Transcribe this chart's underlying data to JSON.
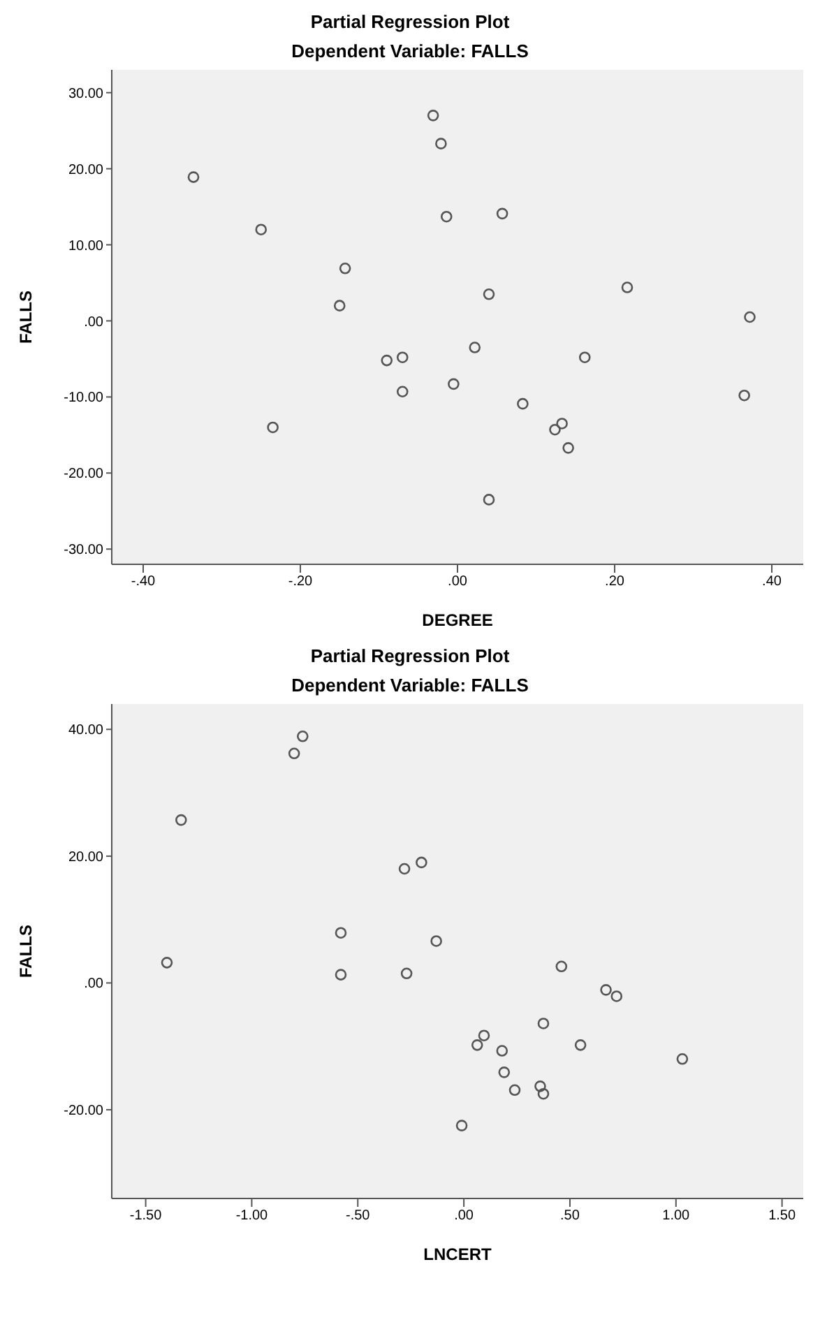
{
  "chart_data": [
    {
      "type": "scatter",
      "title": "Partial Regression Plot",
      "subtitle": "Dependent Variable: FALLS",
      "xlabel": "DEGREE",
      "ylabel": "FALLS",
      "marker": "circle",
      "grid": false,
      "xlim": [
        -0.44,
        0.44
      ],
      "ylim": [
        -32,
        33
      ],
      "xticks": [
        {
          "value": -0.4,
          "label": "-.40"
        },
        {
          "value": -0.2,
          "label": "-.20"
        },
        {
          "value": 0,
          "label": ".00"
        },
        {
          "value": 0.2,
          "label": ".20"
        },
        {
          "value": 0.4,
          "label": ".40"
        }
      ],
      "yticks": [
        {
          "value": -30,
          "label": "-30.00"
        },
        {
          "value": -20,
          "label": "-20.00"
        },
        {
          "value": -10,
          "label": "-10.00"
        },
        {
          "value": 0,
          "label": ".00"
        },
        {
          "value": 10,
          "label": "10.00"
        },
        {
          "value": 20,
          "label": "20.00"
        },
        {
          "value": 30,
          "label": "30.00"
        }
      ],
      "series": [
        {
          "color": "#555555",
          "x": [
            -0.336,
            -0.25,
            -0.143,
            -0.15,
            -0.09,
            -0.07,
            -0.07,
            -0.235,
            -0.031,
            -0.021,
            -0.014,
            0.057,
            0.04,
            0.216,
            0.372,
            0.022,
            0.162,
            -0.005,
            0.083,
            0.124,
            0.133,
            0.141,
            0.04,
            0.365
          ],
          "values": [
            18.9,
            12,
            6.9,
            2.0,
            -5.2,
            -4.8,
            -9.3,
            -14,
            27,
            23.3,
            13.7,
            14.1,
            3.5,
            4.4,
            0.5,
            -3.5,
            -4.8,
            -8.3,
            -10.9,
            -14.3,
            -13.5,
            -16.7,
            -23.5,
            -9.8
          ]
        }
      ]
    },
    {
      "type": "scatter",
      "title": "Partial Regression Plot",
      "subtitle": "Dependent Variable: FALLS",
      "xlabel": "LNCERT",
      "ylabel": "FALLS",
      "marker": "circle",
      "grid": false,
      "xlim": [
        -1.66,
        1.6
      ],
      "ylim": [
        -34,
        44
      ],
      "xticks": [
        {
          "value": -1.5,
          "label": "-1.50"
        },
        {
          "value": -1,
          "label": "-1.00"
        },
        {
          "value": -0.5,
          "label": "-.50"
        },
        {
          "value": 0,
          "label": ".00"
        },
        {
          "value": 0.5,
          "label": ".50"
        },
        {
          "value": 1,
          "label": "1.00"
        },
        {
          "value": 1.5,
          "label": "1.50"
        }
      ],
      "yticks": [
        {
          "value": -20,
          "label": "-20.00"
        },
        {
          "value": 0,
          "label": ".00"
        },
        {
          "value": 20,
          "label": "20.00"
        },
        {
          "value": 40,
          "label": "40.00"
        }
      ],
      "series": [
        {
          "color": "#555555",
          "x": [
            -1.333,
            -1.4,
            -0.76,
            -0.8,
            -0.58,
            -0.58,
            -0.28,
            -0.2,
            -0.13,
            -0.27,
            0.46,
            0.67,
            0.72,
            0.375,
            0.55,
            0.095,
            0.063,
            0.18,
            0.19,
            0.24,
            0.36,
            0.375,
            1.03,
            -0.01
          ],
          "values": [
            25.7,
            3.2,
            38.9,
            36.2,
            7.9,
            1.3,
            18.0,
            19.0,
            6.6,
            1.5,
            2.6,
            -1.1,
            -2.1,
            -6.4,
            -9.8,
            -8.3,
            -9.8,
            -10.7,
            -14.1,
            -16.9,
            -16.3,
            -17.5,
            -12,
            -22.5
          ]
        }
      ]
    }
  ]
}
